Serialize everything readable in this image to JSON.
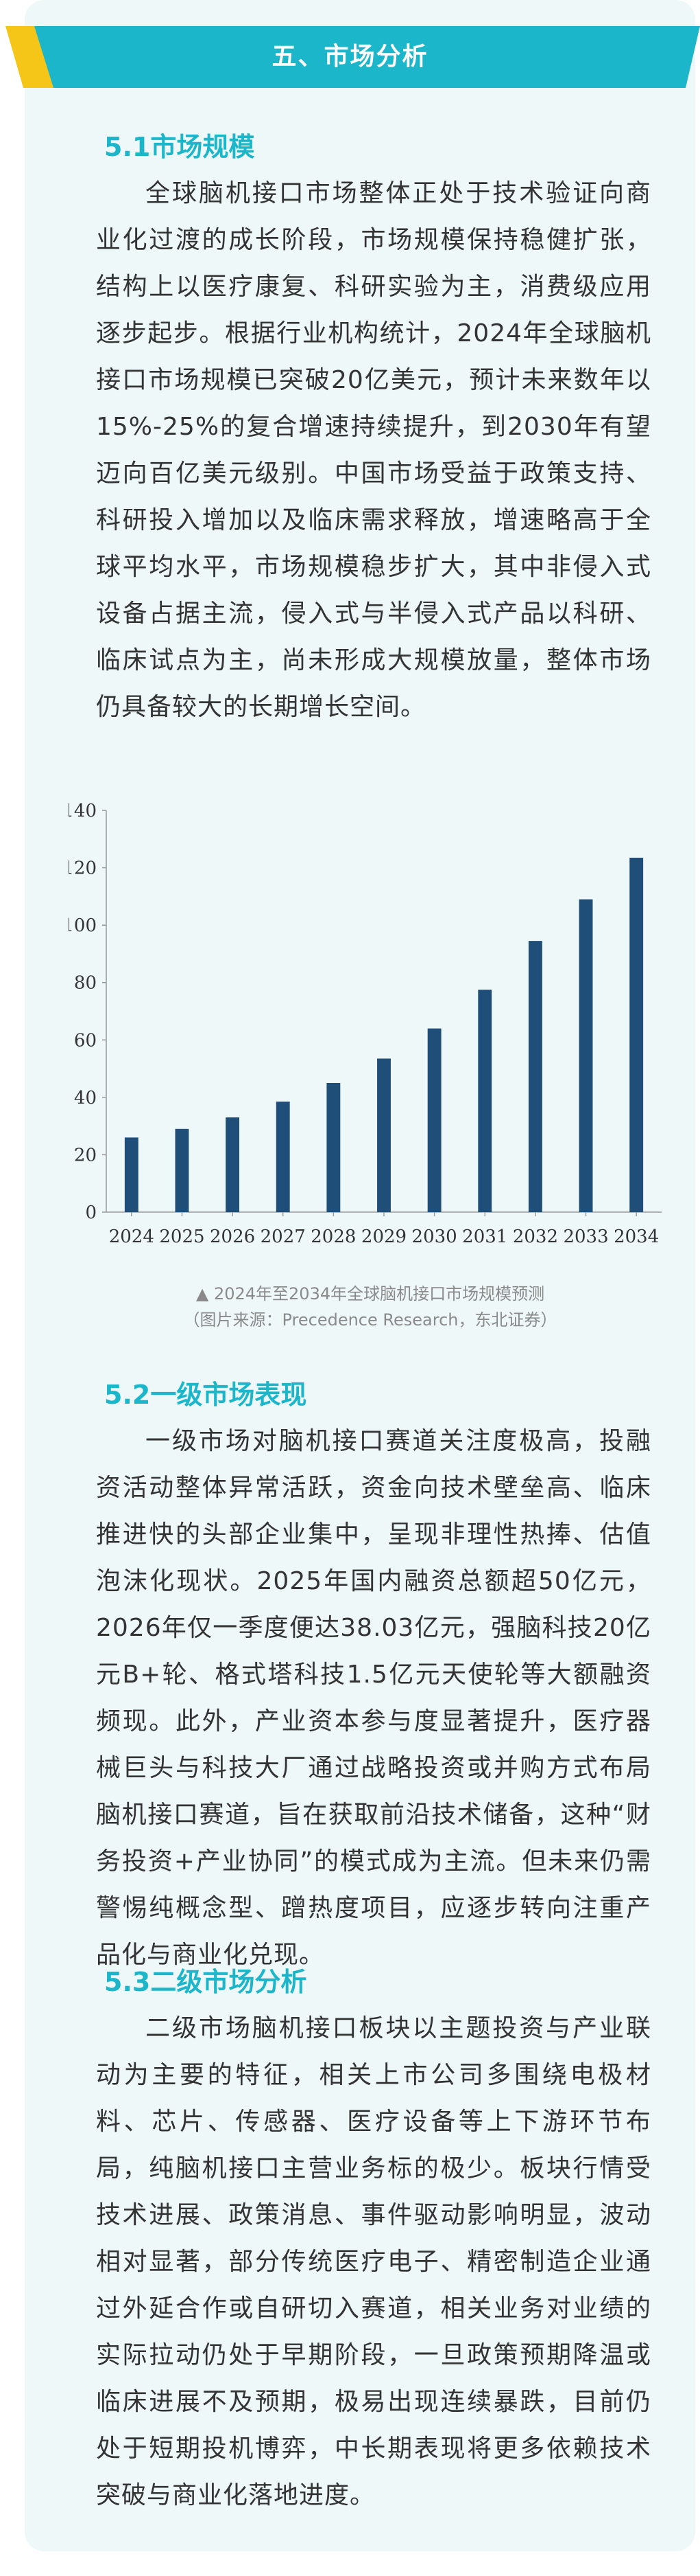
{
  "header": {
    "title": "五、市场分析"
  },
  "section1": {
    "heading": "5.1市场规模",
    "paragraph": "全球脑机接口市场整体正处于技术验证向商业化过渡的成长阶段，市场规模保持稳健扩张，结构上以医疗康复、科研实验为主，消费级应用逐步起步。根据行业机构统计，2024年全球脑机接口市场规模已突破20亿美元，预计未来数年以15%-25%的复合增速持续提升，到2030年有望迈向百亿美元级别。中国市场受益于政策支持、科研投入增加以及临床需求释放，增速略高于全球平均水平，市场规模稳步扩大，其中非侵入式设备占据主流，侵入式与半侵入式产品以科研、临床试点为主，尚未形成大规模放量，整体市场仍具备较大的长期增长空间。"
  },
  "chart_data": {
    "type": "bar",
    "categories": [
      "2024",
      "2025",
      "2026",
      "2027",
      "2028",
      "2029",
      "2030",
      "2031",
      "2032",
      "2033",
      "2034"
    ],
    "values": [
      26,
      29,
      33,
      38.5,
      45,
      53.5,
      64,
      77.5,
      94.5,
      109,
      123.5
    ],
    "ylim": [
      0,
      140
    ],
    "yticks": [
      0,
      20,
      40,
      60,
      80,
      100,
      120,
      140
    ],
    "bar_color": "#1f4e79",
    "title": "",
    "xlabel": "",
    "ylabel": ""
  },
  "chart_caption": {
    "line1": "▲ 2024年至2034年全球脑机接口市场规模预测",
    "line2": "（图片来源：Precedence Research，东北证券）"
  },
  "section2": {
    "heading": "5.2一级市场表现",
    "paragraph": "一级市场对脑机接口赛道关注度极高，投融资活动整体异常活跃，资金向技术壁垒高、临床推进快的头部企业集中，呈现非理性热捧、估值泡沫化现状。2025年国内融资总额超50亿元，2026年仅一季度便达38.03亿元，强脑科技20亿元B+轮、格式塔科技1.5亿元天使轮等大额融资频现。此外，产业资本参与度显著提升，医疗器械巨头与科技大厂通过战略投资或并购方式布局脑机接口赛道，旨在获取前沿技术储备，这种“财务投资+产业协同”的模式成为主流。但未来仍需警惕纯概念型、蹭热度项目，应逐步转向注重产品化与商业化兑现。"
  },
  "section3": {
    "heading": "5.3二级市场分析",
    "paragraph": "二级市场脑机接口板块以主题投资与产业联动为主要的特征，相关上市公司多围绕电极材料、芯片、传感器、医疗设备等上下游环节布局，纯脑机接口主营业务标的极少。板块行情受技术进展、政策消息、事件驱动影响明显，波动相对显著，部分传统医疗电子、精密制造企业通过外延合作或自研切入赛道，相关业务对业绩的实际拉动仍处于早期阶段，一旦政策预期降温或临床进展不及预期，极易出现连续暴跌，目前仍处于短期投机博弈，中长期表现将更多依赖技术突破与商业化落地进度。"
  },
  "colors": {
    "accent": "#1bb6c9",
    "banner_bar": "#f5c518",
    "background": "#eff8f9"
  }
}
